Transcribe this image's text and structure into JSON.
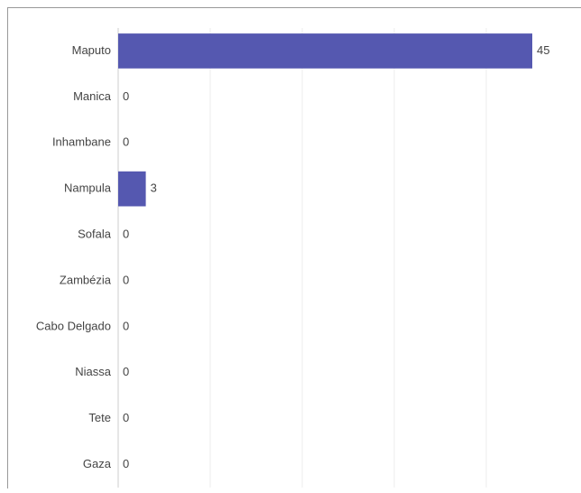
{
  "chart_data": {
    "type": "bar",
    "orientation": "horizontal",
    "categories": [
      "Maputo",
      "Manica",
      "Inhambane",
      "Nampula",
      "Sofala",
      "Zambézia",
      "Cabo Delgado",
      "Niassa",
      "Tete",
      "Gaza"
    ],
    "values": [
      45,
      0,
      0,
      3,
      0,
      0,
      0,
      0,
      0,
      0
    ],
    "color": "#5558b0",
    "xlim": [
      0,
      45
    ],
    "xticks": [
      0,
      10,
      20,
      30,
      40
    ],
    "grid": true
  }
}
